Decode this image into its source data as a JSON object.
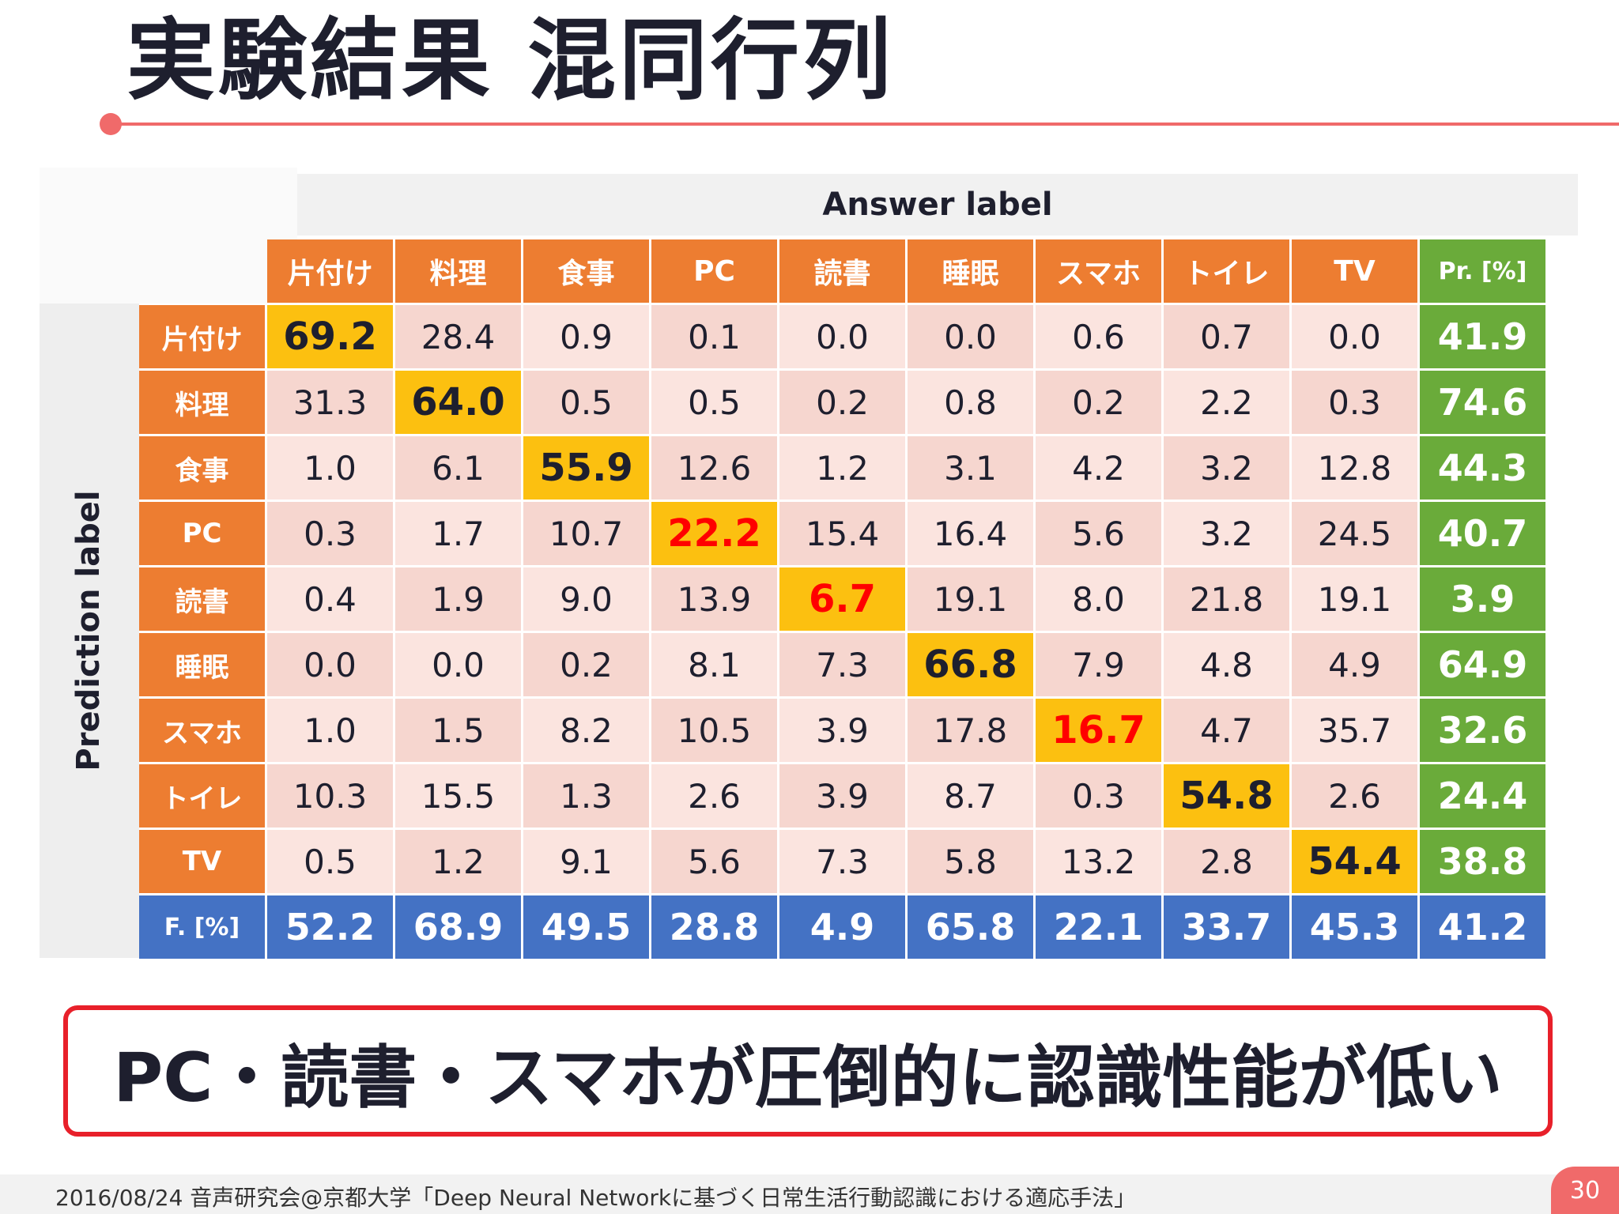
{
  "title": "実験結果 混同行列",
  "answer_label": "Answer label",
  "prediction_label": "Prediction label",
  "conclusion": "PC・読書・スマホが圧倒的に認識性能が低い",
  "footer": "2016/08/24 音声研究会@京都大学「Deep Neural Networkに基づく日常生活行動認識における適応手法」",
  "page_number": "30",
  "colors": {
    "header": "#ed7d31",
    "precision": "#6aab3a",
    "fscore": "#4472c4",
    "diagonal": "#fcc010",
    "low_text": "#ff0000",
    "accent": "#f06a6a"
  },
  "chart_data": {
    "type": "table",
    "title": "実験結果 混同行列",
    "xlabel": "Answer label",
    "ylabel": "Prediction label",
    "columns": [
      "片付け",
      "料理",
      "食事",
      "PC",
      "読書",
      "睡眠",
      "スマホ",
      "トイレ",
      "TV"
    ],
    "rows": [
      "片付け",
      "料理",
      "食事",
      "PC",
      "読書",
      "睡眠",
      "スマホ",
      "トイレ",
      "TV"
    ],
    "precision_header": "Pr. [%]",
    "fscore_header": "F. [%]",
    "matrix": [
      [
        "69.2",
        "28.4",
        "0.9",
        "0.1",
        "0.0",
        "0.0",
        "0.6",
        "0.7",
        "0.0"
      ],
      [
        "31.3",
        "64.0",
        "0.5",
        "0.5",
        "0.2",
        "0.8",
        "0.2",
        "2.2",
        "0.3"
      ],
      [
        "1.0",
        "6.1",
        "55.9",
        "12.6",
        "1.2",
        "3.1",
        "4.2",
        "3.2",
        "12.8"
      ],
      [
        "0.3",
        "1.7",
        "10.7",
        "22.2",
        "15.4",
        "16.4",
        "5.6",
        "3.2",
        "24.5"
      ],
      [
        "0.4",
        "1.9",
        "9.0",
        "13.9",
        "6.7",
        "19.1",
        "8.0",
        "21.8",
        "19.1"
      ],
      [
        "0.0",
        "0.0",
        "0.2",
        "8.1",
        "7.3",
        "66.8",
        "7.9",
        "4.8",
        "4.9"
      ],
      [
        "1.0",
        "1.5",
        "8.2",
        "10.5",
        "3.9",
        "17.8",
        "16.7",
        "4.7",
        "35.7"
      ],
      [
        "10.3",
        "15.5",
        "1.3",
        "2.6",
        "3.9",
        "8.7",
        "0.3",
        "54.8",
        "2.6"
      ],
      [
        "0.5",
        "1.2",
        "9.1",
        "5.6",
        "7.3",
        "5.8",
        "13.2",
        "2.8",
        "54.4"
      ]
    ],
    "precision": [
      "41.9",
      "74.6",
      "44.3",
      "40.7",
      "3.9",
      "64.9",
      "32.6",
      "24.4",
      "38.8"
    ],
    "fscore": [
      "52.2",
      "68.9",
      "49.5",
      "28.8",
      "4.9",
      "65.8",
      "22.1",
      "33.7",
      "45.3"
    ],
    "overall": "41.2",
    "low_diagonal": [
      "PC",
      "読書",
      "スマホ"
    ]
  }
}
